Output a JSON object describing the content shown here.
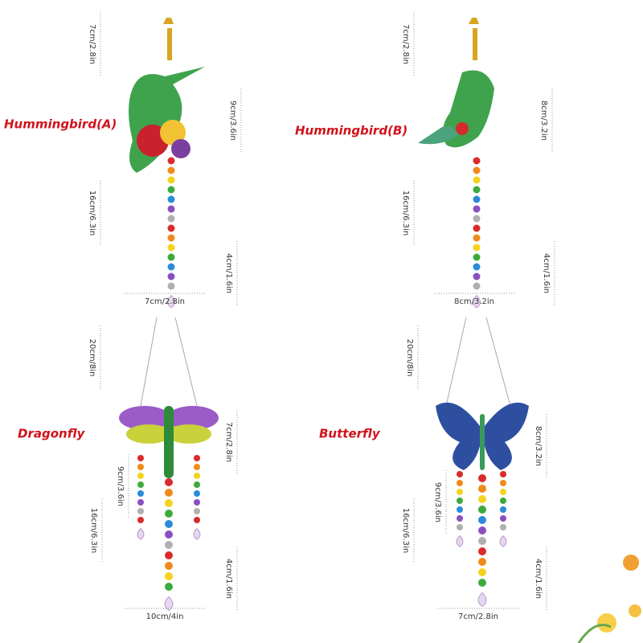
{
  "items": [
    {
      "name": "Hummingbird(A)",
      "dimensions": [
        "7cm/2.8in",
        "9cm/3.6in",
        "16cm/6.3in",
        "4cm/1.6in",
        "7cm/2.8in"
      ]
    },
    {
      "name": "Hummingbird(B)",
      "dimensions": [
        "7cm/2.8in",
        "8cm/3.2in",
        "16cm/6.3in",
        "4cm/1.6in",
        "8cm/3.2in"
      ]
    },
    {
      "name": "Dragonfly",
      "dimensions": [
        "20cm/8in",
        "7cm/2.8in",
        "9cm/3.6in",
        "16cm/6.3in",
        "4cm/1.6in",
        "10cm/4in"
      ]
    },
    {
      "name": "Butterfly",
      "dimensions": [
        "20cm/8in",
        "8cm/3.2in",
        "9cm/3.6in",
        "16cm/6.3in",
        "4cm/1.6in",
        "7cm/2.8in"
      ]
    }
  ]
}
